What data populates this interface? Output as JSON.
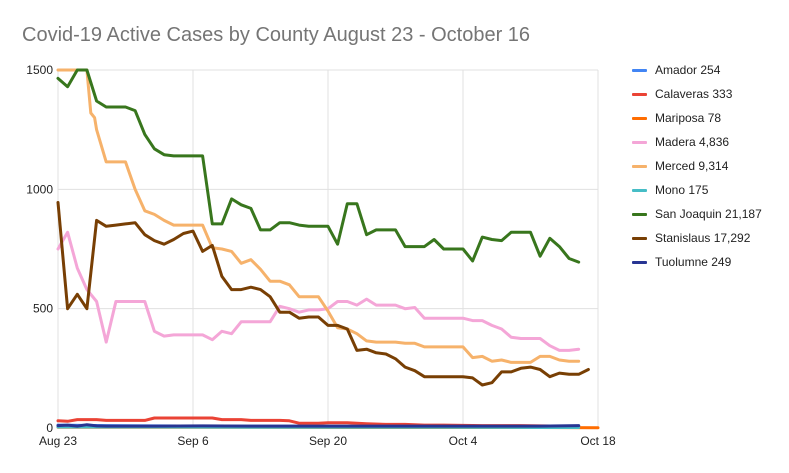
{
  "chart_data": {
    "type": "line",
    "title": "Covid-19 Active Cases by County August 23 - October 16",
    "xlabel": "",
    "ylabel": "",
    "x_start": "Aug 23",
    "x_end": "Oct 18",
    "ylim": [
      0,
      1500
    ],
    "yticks": [
      {
        "value": 0,
        "label": "0"
      },
      {
        "value": 500,
        "label": "500"
      },
      {
        "value": 1000,
        "label": "1000"
      },
      {
        "value": 1500,
        "label": "1500"
      }
    ],
    "xticks": [
      {
        "day": 0,
        "label": "Aug 23"
      },
      {
        "day": 14,
        "label": "Sep 6"
      },
      {
        "day": 28,
        "label": "Sep 20"
      },
      {
        "day": 42,
        "label": "Oct 4"
      },
      {
        "day": 56,
        "label": "Oct 18"
      }
    ],
    "legend_position": "right",
    "grid": true,
    "series": [
      {
        "name": "Amador 254",
        "color": "#4285F4",
        "x": [
          0,
          5,
          10,
          15,
          20,
          25,
          30,
          35,
          40,
          45,
          50,
          54
        ],
        "y": [
          12,
          10,
          9,
          8,
          8,
          7,
          6,
          6,
          5,
          5,
          5,
          6
        ]
      },
      {
        "name": "Calaveras 333",
        "color": "#EA4335",
        "x": [
          0,
          1,
          2,
          3,
          4,
          5,
          6,
          7,
          8,
          9,
          10,
          11,
          12,
          13,
          14,
          15,
          16,
          17,
          18,
          19,
          20,
          21,
          22,
          23,
          24,
          25,
          26,
          27,
          28,
          29,
          30,
          31,
          32,
          34,
          36,
          38,
          40,
          44,
          48,
          52,
          54
        ],
        "y": [
          30,
          28,
          35,
          35,
          35,
          32,
          32,
          32,
          32,
          32,
          42,
          42,
          42,
          42,
          42,
          42,
          42,
          35,
          35,
          35,
          32,
          32,
          32,
          32,
          30,
          20,
          20,
          20,
          22,
          22,
          22,
          20,
          18,
          15,
          15,
          12,
          12,
          10,
          10,
          8,
          8
        ]
      },
      {
        "name": "Mariposa 78",
        "color": "#FF6D01",
        "x": [
          0,
          10,
          20,
          30,
          40,
          50,
          56
        ],
        "y": [
          3,
          3,
          3,
          2,
          2,
          2,
          1
        ]
      },
      {
        "name": "Madera 4,836",
        "color": "#F4A6D7",
        "x": [
          0,
          1,
          2,
          3,
          4,
          5,
          6,
          7,
          8,
          9,
          10,
          11,
          12,
          13,
          14,
          15,
          16,
          17,
          18,
          19,
          20,
          21,
          22,
          23,
          24,
          25,
          26,
          27,
          28,
          29,
          30,
          31,
          32,
          33,
          34,
          35,
          36,
          37,
          38,
          39,
          40,
          41,
          42,
          43,
          44,
          45,
          46,
          47,
          48,
          49,
          50,
          51,
          52,
          53,
          54
        ],
        "y": [
          750,
          820,
          670,
          580,
          530,
          360,
          530,
          530,
          530,
          530,
          405,
          385,
          390,
          390,
          390,
          390,
          370,
          405,
          395,
          445,
          445,
          445,
          445,
          510,
          500,
          485,
          495,
          495,
          500,
          530,
          530,
          515,
          540,
          515,
          515,
          515,
          500,
          505,
          460,
          460,
          460,
          460,
          460,
          450,
          450,
          430,
          415,
          380,
          375,
          375,
          375,
          345,
          325,
          325,
          330
        ]
      },
      {
        "name": "Merced 9,314",
        "color": "#F6B26B",
        "x": [
          0,
          1,
          2,
          3,
          3.4,
          3.8,
          4,
          5,
          6,
          7,
          8,
          9,
          10,
          11,
          12,
          13,
          14,
          15,
          16,
          17,
          18,
          19,
          20,
          21,
          22,
          23,
          24,
          25,
          26,
          27,
          28,
          29,
          30,
          31,
          32,
          33,
          34,
          35,
          36,
          37,
          38,
          39,
          40,
          41,
          42,
          43,
          44,
          45,
          46,
          47,
          48,
          49,
          50,
          51,
          52,
          53,
          54
        ],
        "y": [
          1500,
          1500,
          1500,
          1500,
          1320,
          1300,
          1250,
          1115,
          1115,
          1115,
          1000,
          910,
          895,
          870,
          850,
          850,
          850,
          850,
          755,
          750,
          740,
          690,
          705,
          665,
          615,
          615,
          600,
          550,
          550,
          550,
          490,
          420,
          415,
          395,
          365,
          360,
          360,
          360,
          355,
          355,
          340,
          340,
          340,
          340,
          340,
          295,
          300,
          280,
          285,
          275,
          275,
          275,
          300,
          300,
          285,
          280,
          280
        ]
      },
      {
        "name": "Mono 175",
        "color": "#46BDC6",
        "x": [
          0,
          10,
          20,
          30,
          40,
          50,
          54
        ],
        "y": [
          4,
          4,
          3,
          3,
          3,
          2,
          2
        ]
      },
      {
        "name": "San Joaquin 21,187",
        "color": "#38761D",
        "x": [
          0,
          1,
          2,
          3,
          4,
          5,
          6,
          7,
          8,
          9,
          10,
          11,
          12,
          13,
          14,
          15,
          16,
          17,
          18,
          19,
          20,
          21,
          22,
          23,
          24,
          25,
          26,
          27,
          28,
          29,
          30,
          31,
          32,
          33,
          34,
          35,
          36,
          37,
          38,
          39,
          40,
          41,
          42,
          43,
          44,
          45,
          46,
          47,
          48,
          49,
          50,
          51,
          52,
          53,
          54
        ],
        "y": [
          1465,
          1430,
          1500,
          1500,
          1370,
          1345,
          1345,
          1345,
          1330,
          1230,
          1170,
          1145,
          1140,
          1140,
          1140,
          1140,
          855,
          855,
          960,
          935,
          920,
          830,
          830,
          860,
          860,
          850,
          845,
          845,
          845,
          770,
          940,
          940,
          810,
          830,
          830,
          830,
          760,
          760,
          760,
          790,
          750,
          750,
          750,
          700,
          800,
          790,
          785,
          820,
          820,
          820,
          720,
          795,
          760,
          710,
          695
        ]
      },
      {
        "name": "Stanislaus 17,292",
        "color": "#783F04",
        "x": [
          0,
          1,
          2,
          3,
          4,
          5,
          6,
          7,
          8,
          9,
          10,
          11,
          12,
          13,
          14,
          15,
          16,
          17,
          18,
          19,
          20,
          21,
          22,
          23,
          24,
          25,
          26,
          27,
          28,
          29,
          30,
          31,
          32,
          33,
          34,
          35,
          36,
          37,
          38,
          39,
          40,
          41,
          42,
          43,
          44,
          45,
          46,
          47,
          48,
          49,
          50,
          51,
          52,
          53,
          54,
          55
        ],
        "y": [
          945,
          500,
          560,
          500,
          870,
          845,
          850,
          855,
          860,
          810,
          785,
          770,
          790,
          815,
          825,
          740,
          765,
          635,
          580,
          580,
          590,
          580,
          550,
          485,
          485,
          460,
          465,
          465,
          430,
          430,
          415,
          325,
          330,
          315,
          310,
          290,
          255,
          240,
          215,
          215,
          215,
          215,
          215,
          210,
          180,
          190,
          235,
          235,
          250,
          255,
          245,
          215,
          230,
          225,
          225,
          245
        ]
      },
      {
        "name": "Tuolumne 249",
        "color": "#283593",
        "x": [
          0,
          1,
          2,
          3,
          4,
          5,
          10,
          15,
          20,
          25,
          30,
          35,
          40,
          45,
          50,
          54
        ],
        "y": [
          10,
          12,
          8,
          14,
          9,
          8,
          8,
          9,
          8,
          8,
          8,
          8,
          8,
          8,
          8,
          10
        ]
      }
    ]
  }
}
